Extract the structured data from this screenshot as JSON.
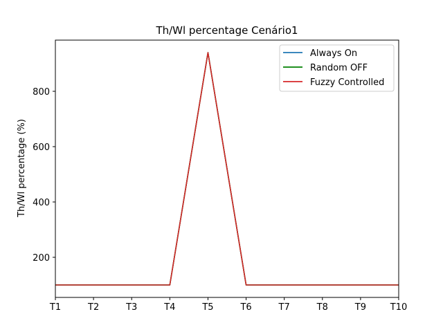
{
  "chart_data": {
    "type": "line",
    "title": "Th/Wl percentage Cenário1",
    "xlabel": "",
    "ylabel": "Th/Wl percentage (%)",
    "categories": [
      "T1",
      "T2",
      "T3",
      "T4",
      "T5",
      "T6",
      "T7",
      "T8",
      "T9",
      "T10"
    ],
    "ylim": [
      55,
      985
    ],
    "yticks": [
      200,
      400,
      600,
      800
    ],
    "grid": false,
    "legend_position": "top-right",
    "series": [
      {
        "name": "Always On",
        "color": "#1f77b4",
        "values": [
          100,
          100,
          100,
          100,
          940,
          100,
          100,
          100,
          100,
          100
        ]
      },
      {
        "name": "Random OFF",
        "color": "#008000",
        "values": [
          100,
          100,
          100,
          100,
          940,
          100,
          100,
          100,
          100,
          100
        ]
      },
      {
        "name": "Fuzzy Controlled",
        "color": "#d62728",
        "values": [
          100,
          100,
          100,
          100,
          940,
          100,
          100,
          100,
          100,
          100
        ]
      }
    ]
  }
}
